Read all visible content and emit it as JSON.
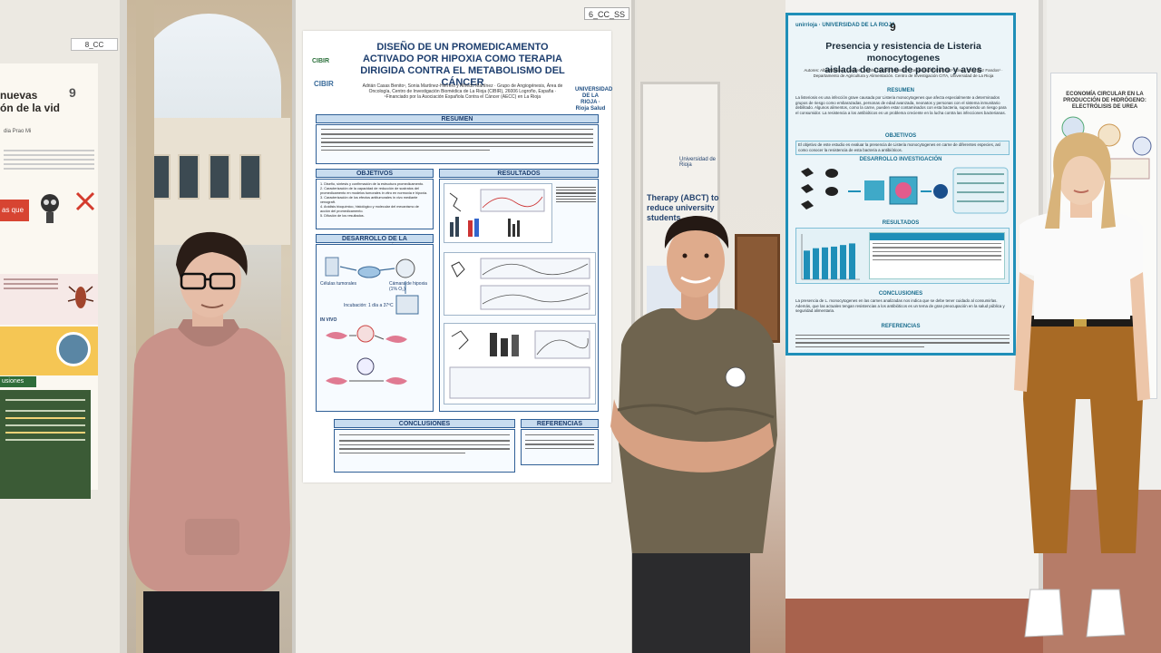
{
  "panel1": {
    "board_tag": "8_CC",
    "poster": {
      "title": "nuevas\nón de la vid",
      "logo": "9",
      "author": "dia Prao Mi",
      "red_label": "as que",
      "green_head": "usiones"
    }
  },
  "panel2": {
    "board_tag": "6_CC_SS",
    "poster": {
      "logo_left_1": "CIBIR",
      "logo_left_2": "CIBIR",
      "logo_right": "UNIVERSIDAD DE LA RIOJA · Rioja Salud",
      "title": "DISEÑO DE UN PROMEDICAMENTO ACTIVADO POR HIPOXIA COMO TERAPIA DIRIGIDA CONTRA EL METABOLISMO DEL CÁNCER",
      "authors": "Adrián Casas Benito¹, Sonia Martínez-Herrero y Alfredo Martínez · Grupo de Angiogénesis, Área de Oncología, Centro de Investigación Biomédica de La Rioja (CIBIR), 26006 Logroño, España · ¹Financiado por la Asociación Española Contra el Cáncer (AECC) en La Rioja",
      "sections": {
        "resumen": "RESUMEN",
        "objetivos": "OBJETIVOS",
        "resultados": "RESULTADOS",
        "desarrollo": "DESARROLLO DE LA INVESTIGACIÓN",
        "conclusiones": "CONCLUSIONES",
        "referencias": "REFERENCIAS"
      },
      "objetivos_items": [
        "1. Diseño, síntesis y confirmación de la estructura promedicamento.",
        "2. Caracterización de la capacidad de reducción de sustratos del promedicamento en modelos tumorales in vitro en normoxia e hipoxia.",
        "3. Caracterización de los efectos antitumorales in vivo mediante xenograft.",
        "4. Análisis bioquímico, histológico y molecular del mecanismo de acción del promedicamento.",
        "5. Difusión de los resultados."
      ],
      "desarrollo_labels": [
        "Células tumorales",
        "Cámara de hipoxia (1% O₂)",
        "Incubación: 1 día a 37ºC",
        "IN VIVO"
      ]
    },
    "mini_board": {
      "title": "Therapy (ABCT) to reduce university students",
      "logo": "Universidad de Rioja"
    }
  },
  "panel3": {
    "poster": {
      "logos": "unirrioja · UNIVERSIDAD DE LA RIOJA",
      "title_line1": "Presencia y resistencia de Listeria monocytogenes",
      "title_line2": "aislada de carne de porcino y aves",
      "authors": "Autores: Alba Martínez Lumbet¹, Ainoha Da Silva Gastón¹, Celia Arriaz Fernández¹, Elena González Fandos¹ · Departamento de Agricultura y Alimentación. Centro de Investigación CITA, Universidad de La Rioja",
      "sections": {
        "resumen": "RESUMEN",
        "objetivos": "OBJETIVOS",
        "desarrollo": "DESARROLLO INVESTIGACIÓN",
        "resultados": "RESULTADOS",
        "conclusiones": "CONCLUSIONES",
        "referencias": "REFERENCIAS"
      },
      "resumen_text": "La listeriosis es una infección grave causada por Listeria monocytogenes que afecta especialmente a determinados grupos de riesgo como embarazadas, personas de edad avanzada, neonatos y personas con el sistema inmunitario debilitado. Algunos alimentos, como la carne, pueden estar contaminados con esta bacteria, suponiendo un riesgo para el consumidor. La resistencia a los antibióticos es un problema creciente en la lucha contra las infecciones bacterianas.",
      "objetivos_text": "El objetivo de este estudio es evaluar la presencia de Listeria monocytogenes en carne de diferentes especies, así como conocer la resistencia de esta bacteria a antibióticos.",
      "conclusiones_text": "La presencia de L. monocytogenes en las carnes analizadas nos indica que se debe tener cuidado al consumirlas. Además, que las actuales tengan resistencias a los antibióticos es un tema de gran preocupación en la salud pública y seguridad alimentaria.",
      "chart_bars": [
        0.72,
        0.78,
        0.8,
        0.82,
        0.86,
        0.9
      ]
    },
    "right_poster": {
      "title": "ECONOMÍA CIRCULAR EN LA PRODUCCIÓN DE HIDRÓGENO: ELECTRÓLISIS DE UREA"
    }
  }
}
